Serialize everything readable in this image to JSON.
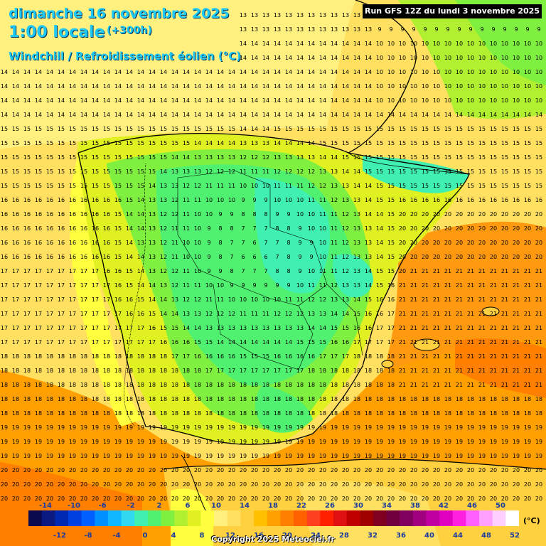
{
  "header": {
    "date": "dimanche 16 novembre 2025",
    "time": "1:00 locale",
    "offset": "(+300h)",
    "parameter": "Windchill / Refroidissement éolien (°C)"
  },
  "run_info": "Run GFS 12Z du lundi 3 novembre 2025",
  "copyright": "Copyright 2025 Meteociel.fr",
  "legend": {
    "unit": "(°C)",
    "top_labels": [
      "-14",
      "-10",
      "-6",
      "-2",
      "2",
      "6",
      "10",
      "14",
      "18",
      "22",
      "26",
      "30",
      "34",
      "38",
      "42",
      "46",
      "50"
    ],
    "bottom_labels": [
      "-12",
      "-8",
      "-4",
      "0",
      "4",
      "8",
      "12",
      "16",
      "20",
      "24",
      "28",
      "32",
      "36",
      "40",
      "44",
      "48",
      "52"
    ],
    "colors": [
      "#0a0a50",
      "#0a1a80",
      "#0028b0",
      "#0040e0",
      "#0060ff",
      "#0090ff",
      "#10b8ff",
      "#30d8f0",
      "#40f0b0",
      "#50f070",
      "#80f040",
      "#b0f030",
      "#e0f020",
      "#ffff40",
      "#fff080",
      "#ffe060",
      "#ffd040",
      "#ffc000",
      "#ffa000",
      "#ff8000",
      "#ff6000",
      "#ff4020",
      "#ff2000",
      "#e01010",
      "#c00000",
      "#a00000",
      "#800020",
      "#700040",
      "#800060",
      "#a00080",
      "#c000a0",
      "#e000c0",
      "#ff20e0",
      "#ff60ff",
      "#ffa0ff",
      "#ffd0ff",
      "#ffffff"
    ]
  }
}
